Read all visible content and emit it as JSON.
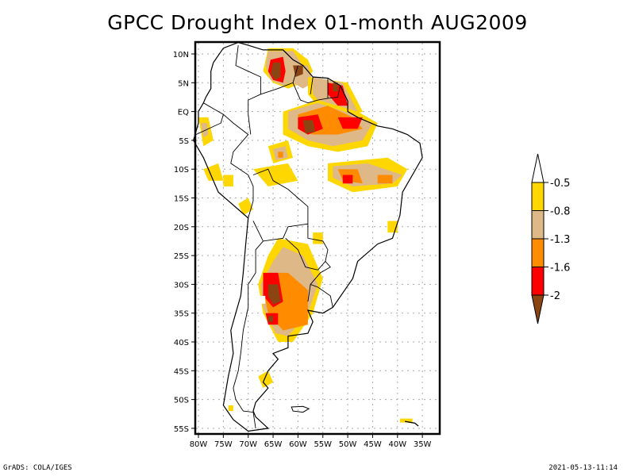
{
  "title": "GPCC Drought Index 01-month AUG2009",
  "footer": {
    "left": "GrADS: COLA/IGES",
    "right": "2021-05-13-11:14"
  },
  "map": {
    "region": "South America",
    "lon_range": [
      -80,
      -32
    ],
    "lat_range": [
      -56,
      12
    ],
    "lat_ticks": [
      {
        "value": 10,
        "label": "10N"
      },
      {
        "value": 5,
        "label": "5N"
      },
      {
        "value": 0,
        "label": "EQ"
      },
      {
        "value": -5,
        "label": "5S"
      },
      {
        "value": -10,
        "label": "10S"
      },
      {
        "value": -15,
        "label": "15S"
      },
      {
        "value": -20,
        "label": "20S"
      },
      {
        "value": -25,
        "label": "25S"
      },
      {
        "value": -30,
        "label": "30S"
      },
      {
        "value": -35,
        "label": "35S"
      },
      {
        "value": -40,
        "label": "40S"
      },
      {
        "value": -45,
        "label": "45S"
      },
      {
        "value": -50,
        "label": "50S"
      },
      {
        "value": -55,
        "label": "55S"
      }
    ],
    "lon_ticks": [
      {
        "value": -80,
        "label": "80W"
      },
      {
        "value": -75,
        "label": "75W"
      },
      {
        "value": -70,
        "label": "70W"
      },
      {
        "value": -65,
        "label": "65W"
      },
      {
        "value": -60,
        "label": "60W"
      },
      {
        "value": -55,
        "label": "55W"
      },
      {
        "value": -50,
        "label": "50W"
      },
      {
        "value": -45,
        "label": "45W"
      },
      {
        "value": -40,
        "label": "40W"
      },
      {
        "value": -35,
        "label": "35W"
      }
    ],
    "grid": "dotted"
  },
  "legend": {
    "levels": [
      {
        "label": "-0.5",
        "color": "#ffd700"
      },
      {
        "label": "-0.8",
        "color": "#deb887"
      },
      {
        "label": "-1.3",
        "color": "#ff8c00"
      },
      {
        "label": "-1.6",
        "color": "#ff0000"
      },
      {
        "label": "-2",
        "color": "#8b4513"
      }
    ],
    "top_triangle_color": "#ffffff",
    "bottom_triangle_color": "#8b4513"
  },
  "colors": {
    "yellow": "#ffd700",
    "tan": "#deb887",
    "orange": "#ff8c00",
    "red": "#ff0000",
    "brown": "#8b4513"
  }
}
